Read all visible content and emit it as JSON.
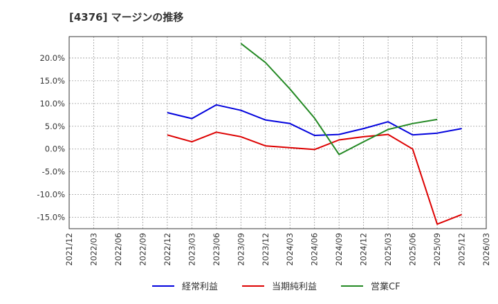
{
  "chart_data": {
    "type": "line",
    "title": "[4376]  マージンの推移",
    "xlabel": "",
    "ylabel": "",
    "ylim": [
      -17.5,
      24.7
    ],
    "x_range": [
      "2021/12",
      "2026/03"
    ],
    "y_ticks": [
      {
        "value": 20,
        "label": "20.0%"
      },
      {
        "value": 15,
        "label": "15.0%"
      },
      {
        "value": 10,
        "label": "10.0%"
      },
      {
        "value": 5,
        "label": "5.0%"
      },
      {
        "value": 0,
        "label": "0.0%"
      },
      {
        "value": -5,
        "label": "-5.0%"
      },
      {
        "value": -10,
        "label": "-10.0%"
      },
      {
        "value": -15,
        "label": "-15.0%"
      }
    ],
    "x_ticks": [
      "2021/12",
      "2022/03",
      "2022/06",
      "2022/09",
      "2022/12",
      "2023/03",
      "2023/06",
      "2023/09",
      "2023/12",
      "2024/03",
      "2024/06",
      "2024/09",
      "2024/12",
      "2025/03",
      "2025/06",
      "2025/09",
      "2025/12",
      "2026/03"
    ],
    "grid": true,
    "legend_position": "bottom",
    "series": [
      {
        "name": "経常利益",
        "color": "#0000dd",
        "x": [
          "2022/12",
          "2023/03",
          "2023/06",
          "2023/09",
          "2023/12",
          "2024/03",
          "2024/06",
          "2024/09",
          "2024/12",
          "2025/03",
          "2025/06",
          "2025/09",
          "2025/12"
        ],
        "values": [
          8.0,
          6.7,
          9.7,
          8.5,
          6.4,
          5.6,
          3.0,
          3.2,
          4.5,
          6.0,
          3.1,
          3.5,
          4.5
        ]
      },
      {
        "name": "当期純利益",
        "color": "#dd0000",
        "x": [
          "2022/12",
          "2023/03",
          "2023/06",
          "2023/09",
          "2023/12",
          "2024/03",
          "2024/06",
          "2024/09",
          "2024/12",
          "2025/03",
          "2025/06",
          "2025/09",
          "2025/12"
        ],
        "values": [
          3.1,
          1.6,
          3.7,
          2.7,
          0.7,
          0.3,
          -0.1,
          2.0,
          2.7,
          3.2,
          0.0,
          -16.5,
          -14.4
        ]
      },
      {
        "name": "営業CF",
        "color": "#228822",
        "x": [
          "2023/09",
          "2023/12",
          "2024/03",
          "2024/06",
          "2024/09",
          "2024/12",
          "2025/03",
          "2025/06",
          "2025/09"
        ],
        "values": [
          23.2,
          19.0,
          13.2,
          6.8,
          -1.2,
          1.6,
          4.3,
          5.6,
          6.5
        ]
      }
    ]
  }
}
